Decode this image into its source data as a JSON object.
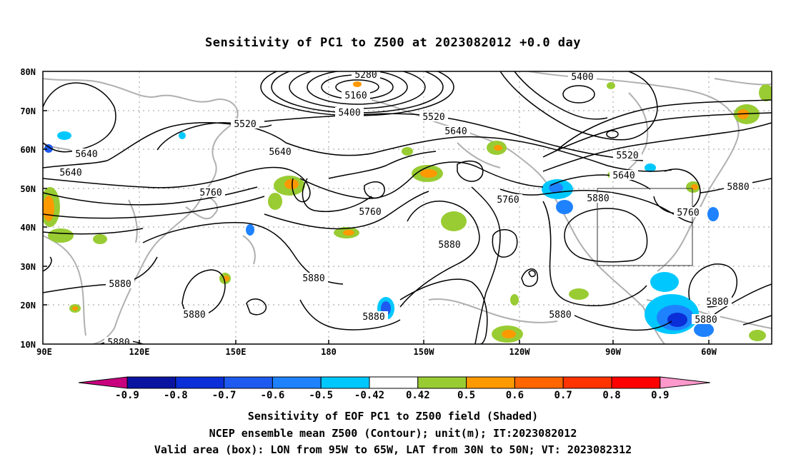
{
  "title": "Sensitivity of PC1 to Z500 at 2023082012 +0.0 day",
  "map": {
    "lat_labels": [
      "80N",
      "70N",
      "60N",
      "50N",
      "40N",
      "30N",
      "20N",
      "10N"
    ],
    "lon_labels": [
      "90E",
      "120E",
      "150E",
      "180",
      "150W",
      "120W",
      "90W",
      "60W"
    ],
    "contour_labels": [
      "5280",
      "5160",
      "5400",
      "5520",
      "5640",
      "5400",
      "5520",
      "5640",
      "5520",
      "5640",
      "5640",
      "5640",
      "5760",
      "5760",
      "5760",
      "5880",
      "5880",
      "5880",
      "5880",
      "5880",
      "5880",
      "5880",
      "5880",
      "5880",
      "5880",
      "5880",
      "5880",
      "5760"
    ],
    "valid_box": {
      "lon_range": [
        "95W",
        "65W"
      ],
      "lat_range": [
        "30N",
        "50N"
      ]
    }
  },
  "colorbar": {
    "labels": [
      "-0.9",
      "-0.8",
      "-0.7",
      "-0.6",
      "-0.5",
      "-0.42",
      "0.42",
      "0.5",
      "0.6",
      "0.7",
      "0.8",
      "0.9"
    ],
    "colors": [
      "#c8007f",
      "#0a14a0",
      "#0a2ed7",
      "#1e5af0",
      "#1e82ff",
      "#00c8ff",
      "#ffffff",
      "#99cc33",
      "#ff9900",
      "#ff6600",
      "#ff3300",
      "#ff0000",
      "#ff99cc"
    ]
  },
  "captions": {
    "line1": "Sensitivity of EOF PC1 to Z500 field (Shaded)",
    "line2": "NCEP ensemble mean Z500 (Contour); unit(m); IT:2023082012",
    "line3": "Valid area (box): LON from 95W to 65W, LAT from 30N to 50N; VT: 2023082312"
  }
}
